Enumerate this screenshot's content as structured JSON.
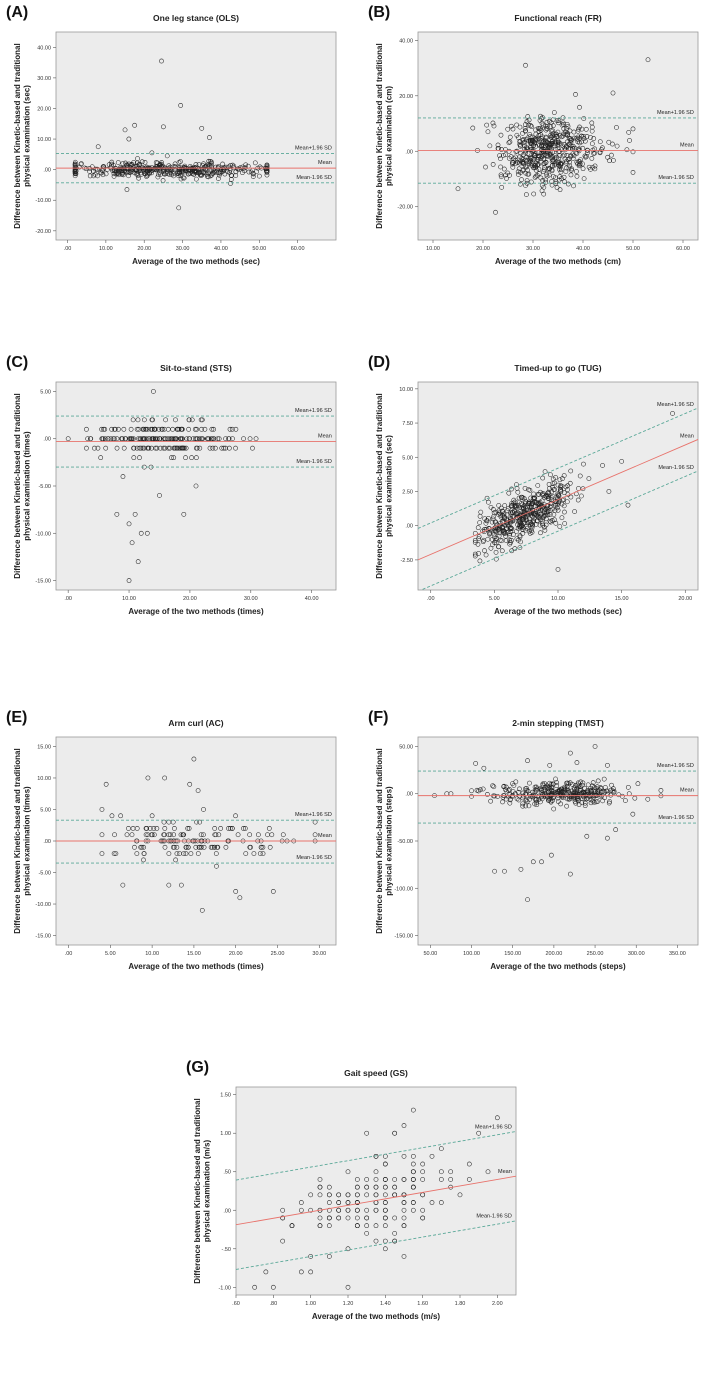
{
  "colors": {
    "plot_bg": "#ececec",
    "frame": "#9a9a9a",
    "mean_line": "#e8736c",
    "sd_line": "#5aa898",
    "point": "#222222"
  },
  "chart_data": [
    {
      "type": "scatter",
      "panel": "(A)",
      "title": "One leg stance (OLS)",
      "xlabel": "Average of the two methods (sec)",
      "ylabel": "Difference between Kinetic-based and traditional physical examination (sec)",
      "xlim": [
        -3,
        70
      ],
      "ylim": [
        -23,
        45
      ],
      "xticks": [
        0,
        10,
        20,
        30,
        40,
        50,
        60
      ],
      "xtick_labels": [
        ".00",
        "10.00",
        "20.00",
        "30.00",
        "40.00",
        "50.00",
        "60.00"
      ],
      "yticks": [
        -20,
        -10,
        0,
        10,
        20,
        30,
        40
      ],
      "ytick_labels": [
        "-20.00",
        "-10.00",
        ".00",
        "10.00",
        "20.00",
        "30.00",
        "40.00"
      ],
      "mean_line": {
        "label": "Mean",
        "y0": 0.5,
        "slope": 0
      },
      "upper_loa": {
        "label": "Mean+1.96 SD",
        "y0": 5.3,
        "slope": 0
      },
      "lower_loa": {
        "label": "Mean-1.96 SD",
        "y0": -4.3,
        "slope": 0
      },
      "cloud": {
        "n": 420,
        "x_mean": 26,
        "x_sd": 14,
        "x_range": [
          2,
          52
        ],
        "b0": 0,
        "b1": 0,
        "noise_sd": 1.2,
        "round": 0
      },
      "outliers": [
        [
          24.5,
          35.5
        ],
        [
          29.5,
          21
        ],
        [
          17.5,
          14.5
        ],
        [
          25,
          14
        ],
        [
          35,
          13.5
        ],
        [
          15,
          13
        ],
        [
          37,
          10.5
        ],
        [
          22,
          5.5
        ],
        [
          29,
          -12.5
        ],
        [
          15.5,
          -6.5
        ],
        [
          42.5,
          -4.5
        ],
        [
          8,
          7.5
        ],
        [
          16,
          10
        ],
        [
          26,
          4.5
        ]
      ]
    },
    {
      "type": "scatter",
      "panel": "(B)",
      "title": "Functional reach (FR)",
      "xlabel": "Average of the two methods (cm)",
      "ylabel": "Difference between Kinetic-based and traditional physical examination (cm)",
      "xlim": [
        7,
        63
      ],
      "ylim": [
        -32,
        43
      ],
      "xticks": [
        10,
        20,
        30,
        40,
        50,
        60
      ],
      "xtick_labels": [
        "10.00",
        "20.00",
        "30.00",
        "40.00",
        "50.00",
        "60.00"
      ],
      "yticks": [
        -20,
        0,
        20,
        40
      ],
      "ytick_labels": [
        "-20.00",
        ".00",
        "20.00",
        "40.00"
      ],
      "mean_line": {
        "label": "Mean",
        "y0": 0.3,
        "slope": 0
      },
      "upper_loa": {
        "label": "Mean+1.96 SD",
        "y0": 12,
        "slope": 0
      },
      "lower_loa": {
        "label": "Mean-1.96 SD",
        "y0": -11.5,
        "slope": 0
      },
      "cloud": {
        "n": 520,
        "x_mean": 33.5,
        "x_sd": 5.5,
        "x_range": [
          17,
          50
        ],
        "b0": 0,
        "b1": 0,
        "noise_sd": 6,
        "round": 0
      },
      "outliers": [
        [
          53,
          33
        ],
        [
          28.5,
          31
        ],
        [
          15,
          -13.5
        ],
        [
          22.5,
          -22
        ],
        [
          46,
          21
        ],
        [
          38.5,
          20.5
        ]
      ]
    },
    {
      "type": "scatter",
      "panel": "(C)",
      "title": "Sit-to-stand (STS)",
      "xlabel": "Average of the two methods (times)",
      "ylabel": "Difference between Kinetic-based and traditional physical examination (times)",
      "xlim": [
        -2,
        44
      ],
      "ylim": [
        -16,
        6
      ],
      "xticks": [
        0,
        10,
        20,
        30,
        40
      ],
      "xtick_labels": [
        ".00",
        "10.00",
        "20.00",
        "30.00",
        "40.00"
      ],
      "yticks": [
        -15,
        -10,
        -5,
        0,
        5
      ],
      "ytick_labels": [
        "-15.00",
        "-10.00",
        "-5.00",
        ".00",
        "5.00"
      ],
      "mean_line": {
        "label": "Mean",
        "y0": -0.3,
        "slope": 0
      },
      "upper_loa": {
        "label": "Mean+1.96 SD",
        "y0": 2.4,
        "slope": 0
      },
      "lower_loa": {
        "label": "Mean-1.96 SD",
        "y0": -3,
        "slope": 0
      },
      "cloud": {
        "n": 220,
        "x_mean": 16,
        "x_sd": 5.5,
        "x_range": [
          3,
          31
        ],
        "b0": 0,
        "b1": 0,
        "noise_sd": 0.9,
        "round": 1
      },
      "outliers": [
        [
          0,
          0
        ],
        [
          14,
          5
        ],
        [
          16,
          2
        ],
        [
          8,
          -8
        ],
        [
          10,
          -9
        ],
        [
          11,
          -8
        ],
        [
          10.5,
          -11
        ],
        [
          11.5,
          -13
        ],
        [
          13,
          -10
        ],
        [
          12,
          -10
        ],
        [
          10,
          -15
        ],
        [
          19,
          -8
        ],
        [
          15,
          -6
        ],
        [
          21,
          -5
        ],
        [
          9,
          -4
        ],
        [
          12.5,
          -3
        ]
      ]
    },
    {
      "type": "scatter",
      "panel": "(D)",
      "title": "Timed-up to go (TUG)",
      "xlabel": "Average of the two methods (sec)",
      "ylabel": "Difference between Kinetic-based and traditional physical examination (sec)",
      "xlim": [
        -1,
        21
      ],
      "ylim": [
        -4.7,
        10.5
      ],
      "xticks": [
        0,
        5,
        10,
        15,
        20
      ],
      "xtick_labels": [
        ".00",
        "5.00",
        "10.00",
        "15.00",
        "20.00"
      ],
      "yticks": [
        -2.5,
        0,
        2.5,
        5,
        7.5,
        10
      ],
      "ytick_labels": [
        "-2.50",
        ".00",
        "2.50",
        "5.00",
        "7.50",
        "10.00"
      ],
      "mean_line": {
        "label": "Mean",
        "y0": -2.1,
        "slope": 0.4
      },
      "upper_loa": {
        "label": "Mean+1.96 SD",
        "y0": 0.2,
        "slope": 0.4
      },
      "lower_loa": {
        "label": "Mean-1.96 SD",
        "y0": -4.4,
        "slope": 0.4
      },
      "cloud": {
        "n": 460,
        "x_mean": 7.5,
        "x_sd": 1.8,
        "x_range": [
          3.5,
          13.5
        ],
        "b0": -2.1,
        "b1": 0.4,
        "noise_sd": 0.9,
        "round": 0
      },
      "outliers": [
        [
          19,
          8.2
        ],
        [
          15,
          4.7
        ],
        [
          13.5,
          4.4
        ],
        [
          10,
          -3.2
        ],
        [
          12,
          4.5
        ],
        [
          14,
          2.5
        ],
        [
          15.5,
          1.5
        ],
        [
          11,
          4
        ]
      ]
    },
    {
      "type": "scatter",
      "panel": "(E)",
      "title": "Arm curl (AC)",
      "xlabel": "Average of the two methods (times)",
      "ylabel": "Difference between Kinetic-based and traditional physical examination (times)",
      "xlim": [
        -1.5,
        32
      ],
      "ylim": [
        -16.5,
        16.5
      ],
      "xticks": [
        0,
        5,
        10,
        15,
        20,
        25,
        30
      ],
      "xtick_labels": [
        ".00",
        "5.00",
        "10.00",
        "15.00",
        "20.00",
        "25.00",
        "30.00"
      ],
      "yticks": [
        -15,
        -10,
        -5,
        0,
        5,
        10,
        15
      ],
      "ytick_labels": [
        "-15.00",
        "-10.00",
        "-5.00",
        ".00",
        "5.00",
        "10.00",
        "15.00"
      ],
      "mean_line": {
        "label": "Mean",
        "y0": 0,
        "slope": 0
      },
      "upper_loa": {
        "label": "Mean+1.96 SD",
        "y0": 3.3,
        "slope": 0
      },
      "lower_loa": {
        "label": "Mean-1.96 SD",
        "y0": -3.5,
        "slope": 0
      },
      "cloud": {
        "n": 150,
        "x_mean": 15,
        "x_sd": 5.5,
        "x_range": [
          4,
          29.5
        ],
        "b0": 0,
        "b1": 0,
        "noise_sd": 1.6,
        "round": 1
      },
      "outliers": [
        [
          15,
          13
        ],
        [
          4.5,
          9
        ],
        [
          9.5,
          10
        ],
        [
          11.5,
          10
        ],
        [
          14.5,
          9
        ],
        [
          15.5,
          8
        ],
        [
          16,
          -11
        ],
        [
          20,
          -8
        ],
        [
          20.5,
          -9
        ],
        [
          24.5,
          -8
        ],
        [
          6.5,
          -7
        ],
        [
          12,
          -7
        ],
        [
          13.5,
          -7
        ],
        [
          4,
          5
        ],
        [
          12,
          3
        ],
        [
          10,
          4
        ]
      ]
    },
    {
      "type": "scatter",
      "panel": "(F)",
      "title": "2-min stepping (TMST)",
      "xlabel": "Average of the two methods (steps)",
      "ylabel": "Difference between Kinetic-based and traditional physical examination (steps)",
      "xlim": [
        35,
        375
      ],
      "ylim": [
        -160,
        60
      ],
      "xticks": [
        50,
        100,
        150,
        200,
        250,
        300,
        350
      ],
      "xtick_labels": [
        "50.00",
        "100.00",
        "150.00",
        "200.00",
        "250.00",
        "300.00",
        "350.00"
      ],
      "yticks": [
        -150,
        -100,
        -50,
        0,
        50
      ],
      "ytick_labels": [
        "-150.00",
        "-100.00",
        "-50.00",
        ".00",
        "50.00"
      ],
      "mean_line": {
        "label": "Mean",
        "y0": -2,
        "slope": 0
      },
      "upper_loa": {
        "label": "Mean+1.96 SD",
        "y0": 24,
        "slope": 0
      },
      "lower_loa": {
        "label": "Mean-1.96 SD",
        "y0": -31,
        "slope": 0
      },
      "cloud": {
        "n": 330,
        "x_mean": 205,
        "x_sd": 40,
        "x_range": [
          100,
          330
        ],
        "b0": 0,
        "b1": 0,
        "noise_sd": 6,
        "round": 0
      },
      "outliers": [
        [
          168,
          -112
        ],
        [
          220,
          -85
        ],
        [
          140,
          -82
        ],
        [
          128,
          -82
        ],
        [
          160,
          -80
        ],
        [
          175,
          -72
        ],
        [
          185,
          -72
        ],
        [
          197,
          -65
        ],
        [
          250,
          50
        ],
        [
          220,
          43
        ],
        [
          168,
          35
        ],
        [
          228,
          33
        ],
        [
          105,
          32
        ],
        [
          265,
          30
        ],
        [
          195,
          30
        ],
        [
          115,
          27
        ],
        [
          55,
          -2
        ],
        [
          70,
          0
        ],
        [
          75,
          0
        ],
        [
          265,
          -47
        ],
        [
          240,
          -45
        ],
        [
          275,
          -38
        ]
      ]
    },
    {
      "type": "scatter",
      "panel": "(G)",
      "title": "Gait speed (GS)",
      "xlabel": "Average of the two methods (m/s)",
      "ylabel": "Difference between Kinetic-based and traditional physical examination (m/s)",
      "xlim": [
        0.6,
        2.1
      ],
      "ylim": [
        -1.1,
        1.6
      ],
      "xticks": [
        0.6,
        0.8,
        1.0,
        1.2,
        1.4,
        1.6,
        1.8,
        2.0
      ],
      "xtick_labels": [
        ".60",
        ".80",
        "1.00",
        "1.20",
        "1.40",
        "1.60",
        "1.80",
        "2.00"
      ],
      "yticks": [
        -1.0,
        -0.5,
        0,
        0.5,
        1.0,
        1.5
      ],
      "ytick_labels": [
        "-1.00",
        "-.50",
        ".00",
        ".50",
        "1.00",
        "1.50"
      ],
      "mean_line": {
        "label": "Mean",
        "y0": -0.44,
        "slope": 0.42
      },
      "upper_loa": {
        "label": "Mean+1.96 SD",
        "y0": 0.14,
        "slope": 0.42
      },
      "lower_loa": {
        "label": "Mean-1.96 SD",
        "y0": -1.02,
        "slope": 0.42
      },
      "cloud": {
        "n": 170,
        "x_mean": 1.32,
        "x_sd": 0.22,
        "x_range": [
          0.85,
          1.85
        ],
        "b0": -0.44,
        "b1": 0.42,
        "noise_sd": 0.28,
        "round": 0.1,
        "round_x": 0.05
      },
      "outliers": [
        [
          0.7,
          -1.0
        ],
        [
          0.8,
          -1.0
        ],
        [
          1.2,
          -1.0
        ],
        [
          1.55,
          1.3
        ],
        [
          2.0,
          1.2
        ],
        [
          1.9,
          1.0
        ],
        [
          1.3,
          1.0
        ],
        [
          0.76,
          -0.8
        ],
        [
          1.45,
          1.0
        ],
        [
          1.95,
          0.5
        ]
      ]
    }
  ]
}
